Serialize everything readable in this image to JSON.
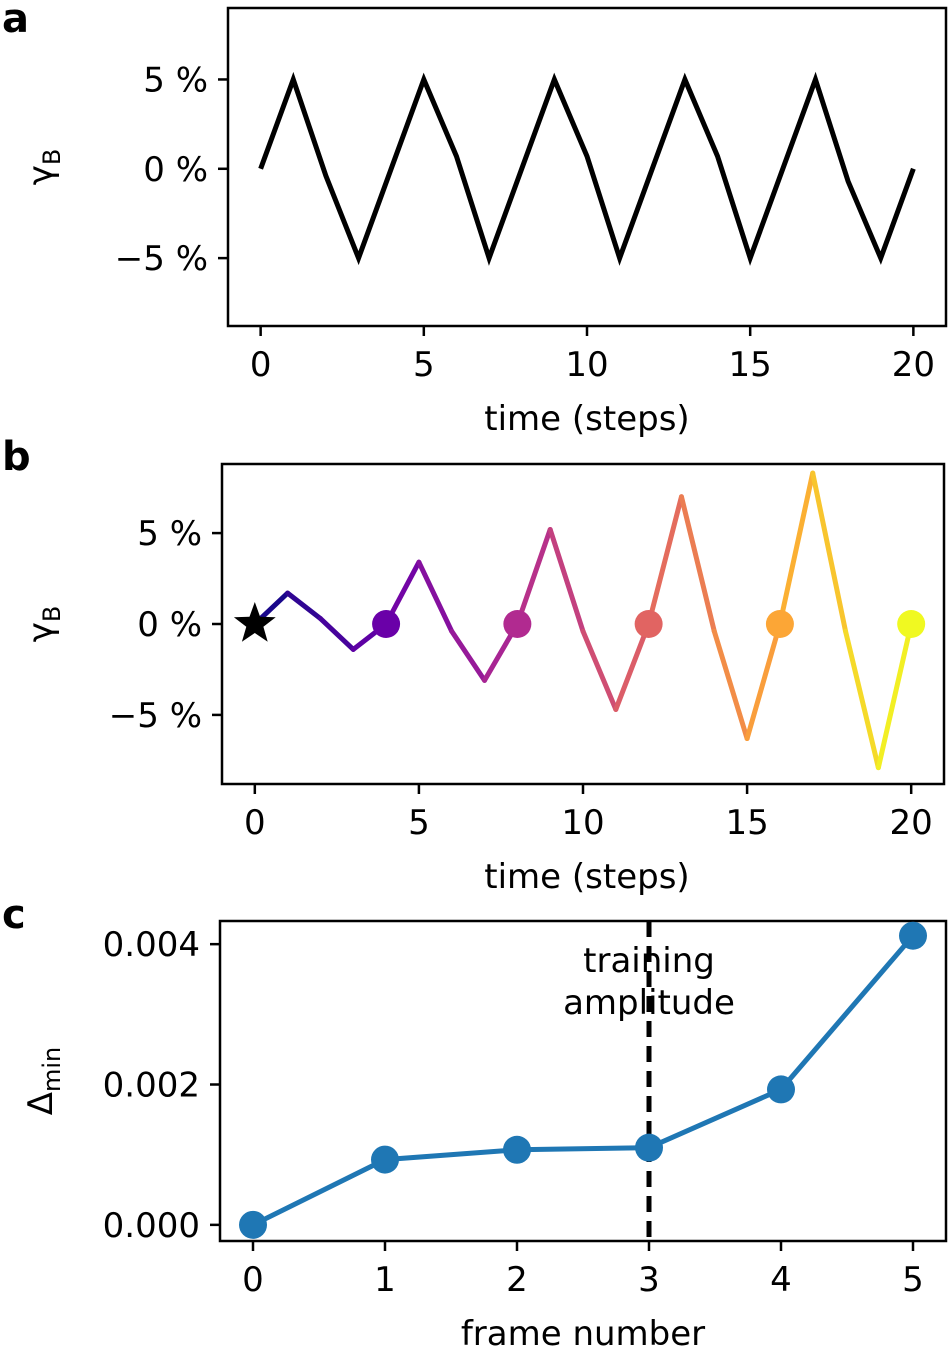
{
  "chart_data": [
    {
      "panel": "a",
      "type": "line",
      "xlabel": "time (steps)",
      "ylabel_main": "γ",
      "ylabel_sub": "B",
      "xlim": [
        -1,
        21
      ],
      "ylim": [
        -8.8,
        9
      ],
      "xticks": [
        0,
        5,
        10,
        15,
        20
      ],
      "yticks": [
        -5,
        0,
        5
      ],
      "ytick_labels": [
        "−5 %",
        "0 %",
        "5 %"
      ],
      "line_color": "#000000",
      "x": [
        0,
        1,
        2,
        3,
        4,
        5,
        6,
        7,
        8,
        9,
        10,
        11,
        12,
        13,
        14,
        15,
        16,
        17,
        18,
        19,
        20
      ],
      "y": [
        0,
        5,
        -0.4,
        -5,
        0,
        5,
        0.7,
        -5,
        0,
        5,
        0.7,
        -5,
        0,
        5,
        0.7,
        -5,
        0,
        5,
        -0.7,
        -5,
        0
      ]
    },
    {
      "panel": "b",
      "type": "line",
      "xlabel": "time (steps)",
      "ylabel_main": "γ",
      "ylabel_sub": "B",
      "xlim": [
        -1,
        21
      ],
      "ylim": [
        -8.8,
        8.8
      ],
      "xticks": [
        0,
        5,
        10,
        15,
        20
      ],
      "yticks": [
        -5,
        0,
        5
      ],
      "ytick_labels": [
        "−5 %",
        "0 %",
        "5 %"
      ],
      "colormap": [
        "#0d0887",
        "#6a00a8",
        "#b12a90",
        "#e16462",
        "#fca636",
        "#f0f921"
      ],
      "x": [
        0,
        1,
        2,
        3,
        4,
        5,
        6,
        7,
        8,
        9,
        10,
        11,
        12,
        13,
        14,
        15,
        16,
        17,
        18,
        19,
        20
      ],
      "y": [
        0,
        1.7,
        0.3,
        -1.4,
        0,
        3.4,
        -0.4,
        -3.1,
        0,
        5.2,
        -0.4,
        -4.7,
        0,
        7.0,
        -0.4,
        -6.3,
        0,
        8.3,
        -0.4,
        -7.9,
        0
      ],
      "start_marker": {
        "x": 0,
        "y": 0,
        "shape": "star",
        "color": "#000000"
      },
      "frame_points": [
        {
          "x": 4,
          "y": 0,
          "color": "#6a00a8"
        },
        {
          "x": 8,
          "y": 0,
          "color": "#b12a90"
        },
        {
          "x": 12,
          "y": 0,
          "color": "#e16462"
        },
        {
          "x": 16,
          "y": 0,
          "color": "#fca636"
        },
        {
          "x": 20,
          "y": 0,
          "color": "#f0f921"
        }
      ]
    },
    {
      "panel": "c",
      "type": "line",
      "xlabel": "frame number",
      "ylabel_main": "Δ",
      "ylabel_sub": "min",
      "xlim": [
        -0.25,
        5.25
      ],
      "ylim": [
        -0.00023,
        0.00433
      ],
      "xticks": [
        0,
        1,
        2,
        3,
        4,
        5
      ],
      "yticks": [
        0.0,
        0.002,
        0.004
      ],
      "ytick_labels": [
        "0.000",
        "0.002",
        "0.004"
      ],
      "line_color": "#1f77b4",
      "x": [
        0,
        1,
        2,
        3,
        4,
        5
      ],
      "y": [
        0.0,
        0.00093,
        0.00107,
        0.0011,
        0.00193,
        0.00412
      ],
      "annotation": {
        "x": 3,
        "line1": "training",
        "line2": "amplitude",
        "style": "dashed"
      }
    }
  ]
}
